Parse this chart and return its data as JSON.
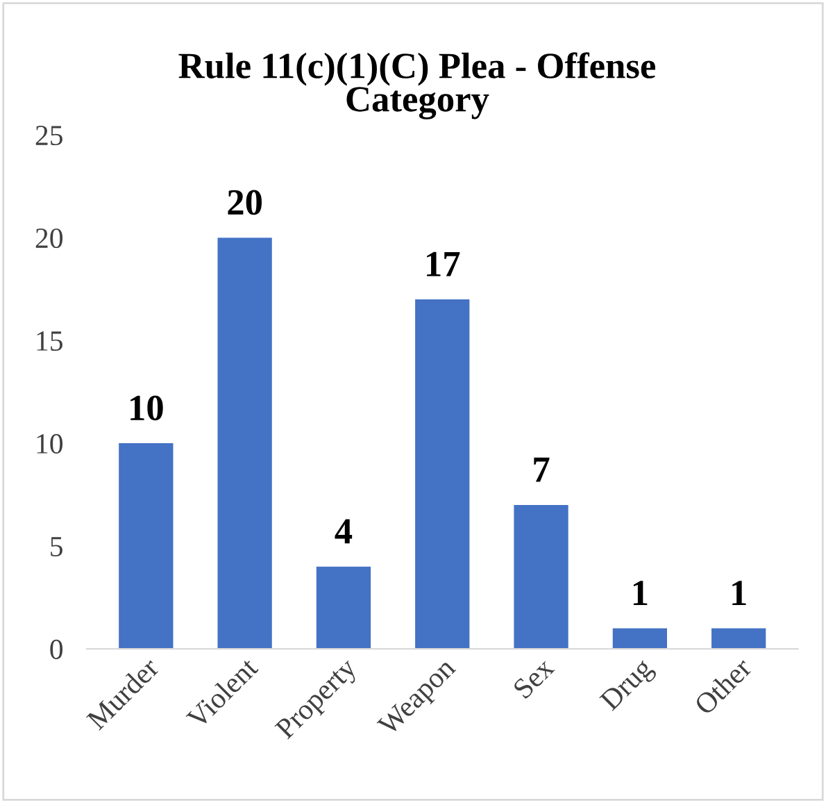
{
  "chart_data": {
    "type": "bar",
    "title": "Rule 11(c)(1)(C) Plea - Offense\nCategory",
    "categories": [
      "Murder",
      "Violent",
      "Property",
      "Weapon",
      "Sex",
      "Drug",
      "Other"
    ],
    "values": [
      10,
      20,
      4,
      17,
      7,
      1,
      1
    ],
    "color": "#4472c4",
    "ylim": [
      0,
      25
    ],
    "yticks": [
      0,
      5,
      10,
      15,
      20,
      25
    ],
    "grid": false,
    "legend": false,
    "data_labels": true
  }
}
